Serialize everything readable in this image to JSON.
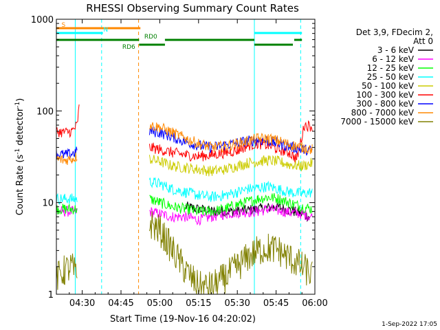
{
  "chart_data": {
    "type": "line",
    "title": "RHESSI Observing Summary Count Rates",
    "xlabel": "Start Time (19-Nov-16 04:20:02)",
    "ylabel": "Count Rate (s",
    "ylabel_sup1": "-1",
    "ylabel_mid": " detector",
    "ylabel_sup2": "-1",
    "ylabel_end": ")",
    "yscale": "log",
    "xlim_min": [
      0,
      100
    ],
    "ylim": [
      1,
      1000
    ],
    "x_ticks": [
      {
        "t": 10,
        "label": "04:30"
      },
      {
        "t": 25,
        "label": "04:45"
      },
      {
        "t": 40,
        "label": "05:00"
      },
      {
        "t": 55,
        "label": "05:15"
      },
      {
        "t": 70,
        "label": "05:30"
      },
      {
        "t": 85,
        "label": "05:45"
      },
      {
        "t": 100,
        "label": "06:00"
      }
    ],
    "y_ticks": [
      {
        "v": 1,
        "label": "1"
      },
      {
        "v": 10,
        "label": "10"
      },
      {
        "v": 100,
        "label": "100"
      },
      {
        "v": 1000,
        "label": "1000"
      }
    ],
    "legend": {
      "header1": "Det 3,9, FDecim 2,",
      "header2": "Att 0",
      "position": "right"
    },
    "series": [
      {
        "name": "3 - 6 keV",
        "color": "#000000",
        "values": [
          [
            0,
            null
          ],
          [
            3,
            null
          ],
          [
            4,
            null
          ],
          [
            9,
            null
          ],
          [
            10,
            null
          ],
          [
            34,
            null
          ],
          [
            35,
            null
          ],
          [
            40,
            null
          ],
          [
            50,
            9
          ],
          [
            60,
            8
          ],
          [
            70,
            8
          ],
          [
            78,
            8.5
          ],
          [
            85,
            9
          ],
          [
            92,
            8
          ],
          [
            98,
            7
          ]
        ]
      },
      {
        "name": "6 - 12 keV",
        "color": "#ff00ff",
        "values": [
          [
            0,
            8
          ],
          [
            3,
            8
          ],
          [
            6,
            8
          ],
          [
            8,
            8
          ],
          [
            9,
            null
          ],
          [
            35,
            null
          ],
          [
            36,
            8
          ],
          [
            40,
            7.5
          ],
          [
            45,
            7
          ],
          [
            50,
            7
          ],
          [
            55,
            6.5
          ],
          [
            60,
            7
          ],
          [
            65,
            7.5
          ],
          [
            70,
            7.8
          ],
          [
            78,
            8
          ],
          [
            82,
            8.5
          ],
          [
            88,
            8
          ],
          [
            95,
            7.5
          ],
          [
            99,
            7
          ]
        ]
      },
      {
        "name": "12 - 25 keV",
        "color": "#00ff00",
        "values": [
          [
            0,
            8.5
          ],
          [
            3,
            8.5
          ],
          [
            6,
            8.5
          ],
          [
            8,
            8.5
          ],
          [
            9,
            null
          ],
          [
            35,
            null
          ],
          [
            36,
            11
          ],
          [
            40,
            10
          ],
          [
            45,
            9
          ],
          [
            50,
            8.5
          ],
          [
            55,
            8
          ],
          [
            60,
            8
          ],
          [
            65,
            8.5
          ],
          [
            70,
            9.5
          ],
          [
            73,
            10
          ],
          [
            78,
            11
          ],
          [
            82,
            11.5
          ],
          [
            86,
            11
          ],
          [
            90,
            10
          ],
          [
            95,
            9
          ],
          [
            99,
            8.5
          ]
        ]
      },
      {
        "name": "25 - 50 keV",
        "color": "#00ffff",
        "values": [
          [
            0,
            11
          ],
          [
            3,
            11
          ],
          [
            6,
            11
          ],
          [
            8,
            11
          ],
          [
            9,
            null
          ],
          [
            35,
            null
          ],
          [
            36,
            17
          ],
          [
            40,
            16
          ],
          [
            45,
            14
          ],
          [
            50,
            13
          ],
          [
            55,
            12
          ],
          [
            60,
            11.5
          ],
          [
            65,
            12
          ],
          [
            70,
            13
          ],
          [
            74,
            14
          ],
          [
            78,
            14.5
          ],
          [
            82,
            15
          ],
          [
            86,
            14
          ],
          [
            90,
            13
          ],
          [
            95,
            12.5
          ],
          [
            99,
            13
          ]
        ]
      },
      {
        "name": "50 - 100 keV",
        "color": "#cccc00",
        "values": [
          [
            0,
            null
          ],
          [
            9,
            null
          ],
          [
            35,
            null
          ],
          [
            36,
            30
          ],
          [
            40,
            28
          ],
          [
            45,
            25
          ],
          [
            50,
            24
          ],
          [
            55,
            23
          ],
          [
            60,
            22
          ],
          [
            65,
            23
          ],
          [
            70,
            25
          ],
          [
            74,
            27
          ],
          [
            78,
            28
          ],
          [
            82,
            29
          ],
          [
            86,
            28
          ],
          [
            90,
            26
          ],
          [
            95,
            25
          ],
          [
            99,
            27
          ]
        ]
      },
      {
        "name": "100 - 300 keV",
        "color": "#ff0000",
        "values": [
          [
            0,
            60
          ],
          [
            3,
            58
          ],
          [
            6,
            60
          ],
          [
            8,
            70
          ],
          [
            8.8,
            110
          ],
          [
            9,
            null
          ],
          [
            35,
            null
          ],
          [
            36,
            40
          ],
          [
            40,
            38
          ],
          [
            45,
            35
          ],
          [
            50,
            33
          ],
          [
            55,
            32
          ],
          [
            60,
            33
          ],
          [
            65,
            35
          ],
          [
            70,
            37
          ],
          [
            74,
            42
          ],
          [
            78,
            44
          ],
          [
            82,
            42
          ],
          [
            86,
            38
          ],
          [
            90,
            35
          ],
          [
            93,
            30
          ],
          [
            96,
            70
          ],
          [
            99,
            68
          ]
        ]
      },
      {
        "name": "300 - 800 keV",
        "color": "#0000ff",
        "values": [
          [
            0,
            34
          ],
          [
            3,
            33
          ],
          [
            6,
            34
          ],
          [
            8,
            36
          ],
          [
            9,
            null
          ],
          [
            35,
            null
          ],
          [
            36,
            60
          ],
          [
            40,
            58
          ],
          [
            45,
            52
          ],
          [
            50,
            46
          ],
          [
            55,
            42
          ],
          [
            60,
            40
          ],
          [
            65,
            42
          ],
          [
            70,
            45
          ],
          [
            74,
            47
          ],
          [
            78,
            48
          ],
          [
            82,
            47
          ],
          [
            86,
            44
          ],
          [
            90,
            41
          ],
          [
            95,
            38
          ],
          [
            99,
            37
          ]
        ]
      },
      {
        "name": "800 - 7000 keV",
        "color": "#ff8800",
        "values": [
          [
            0,
            30
          ],
          [
            3,
            29
          ],
          [
            6,
            30
          ],
          [
            8,
            32
          ],
          [
            9,
            null
          ],
          [
            35,
            null
          ],
          [
            36,
            70
          ],
          [
            40,
            66
          ],
          [
            45,
            58
          ],
          [
            50,
            50
          ],
          [
            55,
            44
          ],
          [
            60,
            40
          ],
          [
            65,
            41
          ],
          [
            70,
            44
          ],
          [
            74,
            47
          ],
          [
            78,
            50
          ],
          [
            82,
            50
          ],
          [
            86,
            47
          ],
          [
            90,
            43
          ],
          [
            95,
            40
          ],
          [
            99,
            38
          ]
        ]
      },
      {
        "name": "7000 - 15000 keV",
        "color": "#808000",
        "values": [
          [
            0,
            1.5
          ],
          [
            3,
            1.8
          ],
          [
            6,
            2
          ],
          [
            8,
            1.5
          ],
          [
            9,
            null
          ],
          [
            35,
            null
          ],
          [
            36,
            6
          ],
          [
            40,
            5
          ],
          [
            45,
            3
          ],
          [
            50,
            1.8
          ],
          [
            55,
            1.2
          ],
          [
            60,
            1.2
          ],
          [
            65,
            1.5
          ],
          [
            70,
            2
          ],
          [
            74,
            2.5
          ],
          [
            78,
            3
          ],
          [
            82,
            3.2
          ],
          [
            86,
            3
          ],
          [
            90,
            2.5
          ],
          [
            95,
            2
          ],
          [
            99,
            1.6
          ]
        ]
      }
    ],
    "vertical_lines": [
      {
        "t": 0,
        "color": "#00ffff",
        "style": "solid"
      },
      {
        "t": 7.3,
        "color": "#00ffff",
        "style": "solid"
      },
      {
        "t": 17.5,
        "color": "#00ffff",
        "style": "dashed"
      },
      {
        "t": 31.8,
        "color": "#ff8800",
        "style": "dashed"
      },
      {
        "t": 76.6,
        "color": "#00ffff",
        "style": "solid"
      },
      {
        "t": 94.5,
        "color": "#00ffff",
        "style": "dashed"
      }
    ],
    "flag_bars": [
      {
        "label": "S",
        "color": "#ff8800",
        "segments": [
          [
            0,
            7.3
          ],
          [
            7.3,
            32.5
          ]
        ],
        "label_at": 2
      },
      {
        "label": "N",
        "color": "#00ffff",
        "segments": [
          [
            0,
            18
          ],
          [
            76.6,
            95
          ]
        ],
        "label_at": 18.2
      },
      {
        "label": "RD0",
        "color": "#008000",
        "segments": [
          [
            0,
            32
          ],
          [
            42,
            76.6
          ],
          [
            92,
            95
          ]
        ],
        "label_at": 34
      },
      {
        "label": "RD6",
        "color": "#008000",
        "segments": [
          [
            32,
            42
          ],
          [
            76.6,
            91.5
          ]
        ],
        "label_at": 25.5
      }
    ],
    "footer_date": "1-Sep-2022 17:05"
  }
}
